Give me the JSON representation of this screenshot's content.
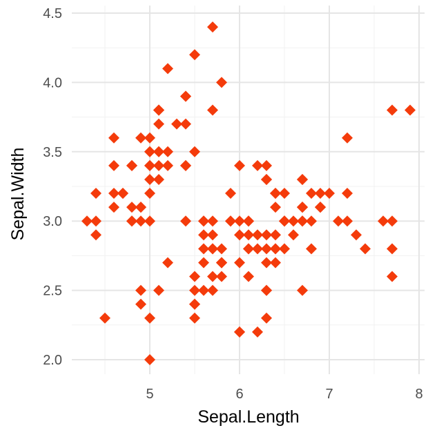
{
  "chart_data": {
    "type": "scatter",
    "title": "",
    "xlabel": "Sepal.Length",
    "ylabel": "Sepal.Width",
    "xlim": [
      4.3,
      7.9
    ],
    "ylim": [
      2.0,
      4.4
    ],
    "xticks": [
      5,
      6,
      7,
      8
    ],
    "yticks": [
      2.0,
      2.5,
      3.0,
      3.5,
      4.0,
      4.5
    ],
    "xtick_labels": [
      "5",
      "6",
      "7",
      "8"
    ],
    "ytick_labels": [
      "2.0",
      "2.5",
      "3.0",
      "3.5",
      "4.0",
      "4.5"
    ],
    "grid": true,
    "marker": "diamond",
    "point_color": "#F43B0B",
    "x": [
      5.1,
      4.9,
      4.7,
      4.6,
      5.0,
      5.4,
      4.6,
      5.0,
      4.4,
      4.9,
      5.4,
      4.8,
      4.8,
      4.3,
      5.8,
      5.7,
      5.4,
      5.1,
      5.7,
      5.1,
      5.4,
      5.1,
      4.6,
      5.1,
      4.8,
      5.0,
      5.0,
      5.2,
      5.2,
      4.7,
      4.8,
      5.4,
      5.2,
      5.5,
      4.9,
      5.0,
      5.5,
      4.9,
      4.4,
      5.1,
      5.0,
      4.5,
      4.4,
      5.0,
      5.1,
      4.8,
      5.1,
      4.6,
      5.3,
      5.0,
      7.0,
      6.4,
      6.9,
      5.5,
      6.5,
      5.7,
      6.3,
      4.9,
      6.6,
      5.2,
      5.0,
      5.9,
      6.0,
      6.1,
      5.6,
      6.7,
      5.6,
      5.8,
      6.2,
      5.6,
      5.9,
      6.1,
      6.3,
      6.1,
      6.4,
      6.6,
      6.8,
      6.7,
      6.0,
      5.7,
      5.5,
      5.5,
      5.8,
      6.0,
      5.4,
      6.0,
      6.7,
      6.3,
      5.6,
      5.5,
      5.5,
      6.1,
      5.8,
      5.0,
      5.6,
      5.7,
      5.7,
      6.2,
      5.1,
      5.7,
      6.3,
      5.8,
      7.1,
      6.3,
      6.5,
      7.6,
      4.9,
      7.3,
      6.7,
      7.2,
      6.5,
      6.4,
      6.8,
      5.7,
      5.8,
      6.4,
      6.5,
      7.7,
      7.7,
      6.0,
      6.9,
      5.6,
      7.7,
      6.3,
      6.7,
      7.2,
      6.2,
      6.1,
      6.4,
      7.2,
      7.4,
      7.9,
      6.4,
      6.3,
      6.1,
      7.7,
      6.3,
      6.4,
      6.0,
      6.9,
      6.7,
      6.9,
      5.8,
      6.8,
      6.7,
      6.7,
      6.3,
      6.5,
      6.2,
      5.9
    ],
    "y": [
      3.5,
      3.0,
      3.2,
      3.1,
      3.6,
      3.9,
      3.4,
      3.4,
      2.9,
      3.1,
      3.7,
      3.4,
      3.0,
      3.0,
      4.0,
      4.4,
      3.9,
      3.5,
      3.8,
      3.8,
      3.4,
      3.7,
      3.6,
      3.3,
      3.4,
      3.0,
      3.4,
      3.5,
      3.4,
      3.2,
      3.1,
      3.4,
      4.1,
      4.2,
      3.1,
      3.2,
      3.5,
      3.6,
      3.0,
      3.4,
      3.5,
      2.3,
      3.2,
      3.5,
      3.8,
      3.0,
      3.8,
      3.2,
      3.7,
      3.3,
      3.2,
      3.2,
      3.1,
      2.3,
      2.8,
      2.8,
      3.3,
      2.4,
      2.9,
      2.7,
      2.0,
      3.0,
      2.2,
      2.9,
      2.9,
      3.1,
      3.0,
      2.7,
      2.2,
      2.5,
      3.2,
      2.8,
      2.5,
      2.8,
      2.9,
      3.0,
      2.8,
      3.0,
      2.9,
      2.6,
      2.4,
      2.4,
      2.7,
      2.7,
      3.0,
      3.4,
      3.1,
      2.3,
      3.0,
      2.5,
      2.6,
      3.0,
      2.6,
      2.3,
      2.7,
      3.0,
      2.9,
      2.9,
      2.5,
      2.8,
      3.3,
      2.7,
      3.0,
      2.9,
      3.0,
      3.0,
      2.5,
      2.9,
      2.5,
      3.6,
      3.2,
      2.7,
      3.0,
      2.5,
      2.8,
      3.2,
      3.0,
      3.8,
      2.6,
      2.2,
      3.2,
      2.8,
      2.8,
      2.7,
      3.3,
      3.2,
      2.8,
      3.0,
      2.8,
      3.0,
      2.8,
      3.8,
      2.8,
      2.8,
      2.6,
      3.0,
      3.4,
      3.1,
      3.0,
      3.1,
      3.1,
      3.1,
      2.7,
      3.2,
      3.3,
      3.0,
      2.5,
      3.0,
      3.4,
      3.0
    ]
  }
}
